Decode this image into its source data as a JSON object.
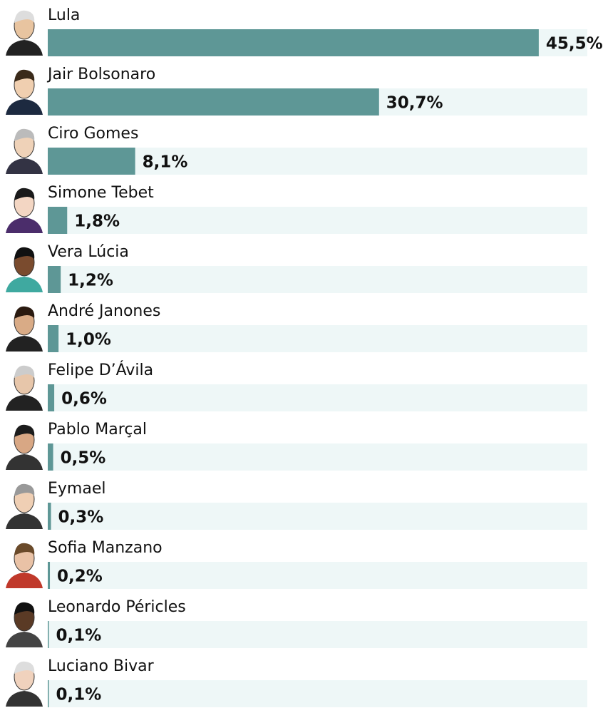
{
  "chart_data": {
    "type": "bar",
    "categories": [
      "Lula",
      "Jair Bolsonaro",
      "Ciro Gomes",
      "Simone Tebet",
      "Vera Lúcia",
      "André Janones",
      "Felipe D’Ávila",
      "Pablo Marçal",
      "Eymael",
      "Sofia Manzano",
      "Leonardo Péricles",
      "Luciano Bivar"
    ],
    "values": [
      45.5,
      30.7,
      8.1,
      1.8,
      1.2,
      1.0,
      0.6,
      0.5,
      0.3,
      0.2,
      0.1,
      0.1
    ],
    "value_labels": [
      "45,5%",
      "30,7%",
      "8,1%",
      "1,8%",
      "1,2%",
      "1,0%",
      "0,6%",
      "0,5%",
      "0,3%",
      "0,2%",
      "0,1%",
      "0,1%"
    ],
    "color": "#5e9796",
    "track_color": "#eef7f7"
  }
}
